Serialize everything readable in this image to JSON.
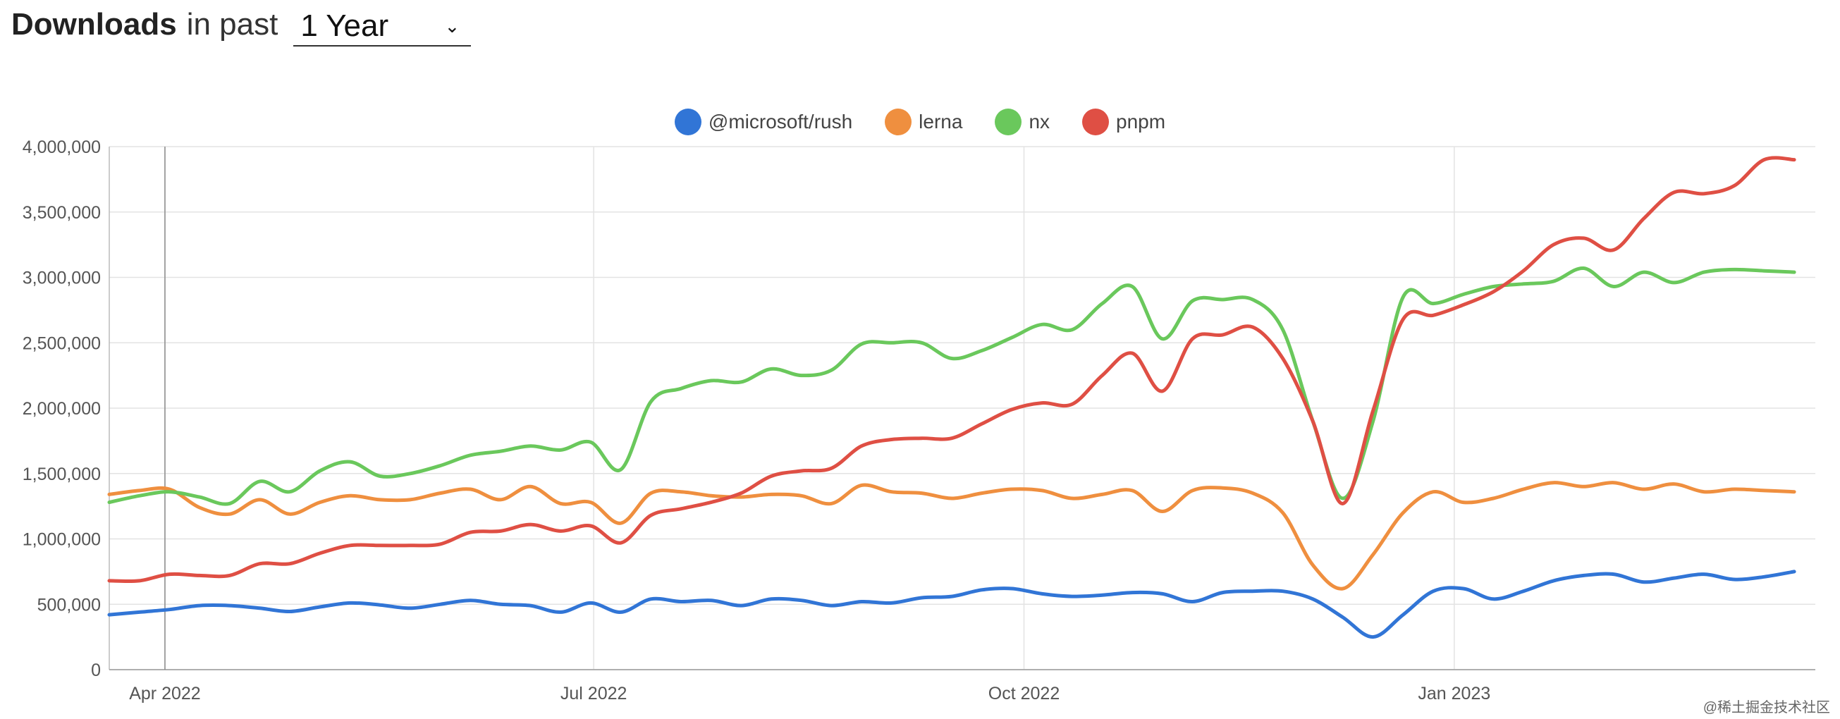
{
  "header": {
    "title_strong": "Downloads",
    "title_light": "in past",
    "range_value": "1 Year",
    "range_chevron": "⌄"
  },
  "colors": {
    "rush": "#3175d6",
    "lerna": "#ef8f3f",
    "nx": "#6ac85c",
    "pnpm": "#df4f44",
    "grid": "#e3e3e3",
    "axis_text": "#555555"
  },
  "chart_data": {
    "type": "line",
    "title": "",
    "xlabel": "",
    "ylabel": "",
    "x": [
      0,
      1,
      2,
      3,
      4,
      5,
      6,
      7,
      8,
      9,
      10,
      11,
      12,
      13,
      14,
      15,
      16,
      17,
      18,
      19,
      20,
      21,
      22,
      23,
      24,
      25,
      26,
      27,
      28,
      29,
      30,
      31,
      32,
      33,
      34,
      35,
      36,
      37,
      38,
      39,
      40,
      41,
      42,
      43,
      44,
      45,
      46,
      47,
      48,
      49,
      50,
      51,
      52,
      53,
      54,
      55,
      56
    ],
    "xlim": [
      0,
      56.7
    ],
    "ylim": [
      0,
      4000000
    ],
    "x_ticks": [
      {
        "label": "Apr 2022",
        "pos": 1.85
      },
      {
        "label": "Jul 2022",
        "pos": 16.1
      },
      {
        "label": "Oct 2022",
        "pos": 30.4
      },
      {
        "label": "Jan 2023",
        "pos": 44.7
      }
    ],
    "y_ticks": [
      {
        "label": "0",
        "value": 0
      },
      {
        "label": "500,000",
        "value": 500000
      },
      {
        "label": "1,000,000",
        "value": 1000000
      },
      {
        "label": "1,500,000",
        "value": 1500000
      },
      {
        "label": "2,000,000",
        "value": 2000000
      },
      {
        "label": "2,500,000",
        "value": 2500000
      },
      {
        "label": "3,000,000",
        "value": 3000000
      },
      {
        "label": "3,500,000",
        "value": 3500000
      },
      {
        "label": "4,000,000",
        "value": 4000000
      }
    ],
    "marker_x": 1.85,
    "series": [
      {
        "key": "rush",
        "name": "@microsoft/rush",
        "values": [
          420000,
          440000,
          460000,
          490000,
          490000,
          470000,
          445000,
          480000,
          510000,
          495000,
          470000,
          500000,
          530000,
          500000,
          490000,
          440000,
          510000,
          440000,
          540000,
          520000,
          530000,
          490000,
          540000,
          530000,
          490000,
          520000,
          510000,
          550000,
          560000,
          610000,
          620000,
          580000,
          560000,
          570000,
          590000,
          580000,
          520000,
          590000,
          600000,
          600000,
          540000,
          400000,
          250000,
          420000,
          600000,
          620000,
          540000,
          600000,
          680000,
          720000,
          730000,
          670000,
          700000,
          730000,
          690000,
          710000,
          750000
        ]
      },
      {
        "key": "lerna",
        "name": "lerna",
        "values": [
          1340000,
          1370000,
          1380000,
          1240000,
          1190000,
          1300000,
          1190000,
          1280000,
          1330000,
          1300000,
          1300000,
          1350000,
          1380000,
          1300000,
          1400000,
          1270000,
          1280000,
          1120000,
          1350000,
          1360000,
          1330000,
          1320000,
          1340000,
          1330000,
          1270000,
          1410000,
          1360000,
          1350000,
          1310000,
          1350000,
          1380000,
          1370000,
          1310000,
          1340000,
          1370000,
          1210000,
          1370000,
          1390000,
          1350000,
          1200000,
          800000,
          620000,
          880000,
          1200000,
          1360000,
          1280000,
          1310000,
          1380000,
          1430000,
          1400000,
          1430000,
          1380000,
          1420000,
          1360000,
          1380000,
          1370000,
          1360000
        ]
      },
      {
        "key": "nx",
        "name": "nx",
        "values": [
          1280000,
          1330000,
          1360000,
          1320000,
          1270000,
          1440000,
          1360000,
          1520000,
          1590000,
          1480000,
          1500000,
          1560000,
          1640000,
          1670000,
          1710000,
          1680000,
          1740000,
          1530000,
          2050000,
          2150000,
          2210000,
          2200000,
          2300000,
          2250000,
          2290000,
          2490000,
          2500000,
          2500000,
          2380000,
          2440000,
          2540000,
          2640000,
          2600000,
          2800000,
          2930000,
          2530000,
          2820000,
          2830000,
          2830000,
          2600000,
          1900000,
          1310000,
          1900000,
          2850000,
          2800000,
          2870000,
          2930000,
          2950000,
          2970000,
          3070000,
          2930000,
          3040000,
          2960000,
          3040000,
          3060000,
          3050000,
          3040000
        ]
      },
      {
        "key": "pnpm",
        "name": "pnpm",
        "values": [
          680000,
          680000,
          730000,
          720000,
          720000,
          810000,
          810000,
          890000,
          950000,
          950000,
          950000,
          960000,
          1050000,
          1060000,
          1110000,
          1060000,
          1100000,
          970000,
          1180000,
          1230000,
          1280000,
          1350000,
          1480000,
          1520000,
          1540000,
          1710000,
          1760000,
          1770000,
          1770000,
          1880000,
          1990000,
          2040000,
          2030000,
          2250000,
          2420000,
          2130000,
          2530000,
          2560000,
          2620000,
          2380000,
          1900000,
          1270000,
          1980000,
          2680000,
          2710000,
          2790000,
          2890000,
          3050000,
          3250000,
          3300000,
          3210000,
          3450000,
          3650000,
          3640000,
          3700000,
          3900000,
          3900000
        ]
      }
    ]
  },
  "watermark": "@稀土掘金技术社区"
}
